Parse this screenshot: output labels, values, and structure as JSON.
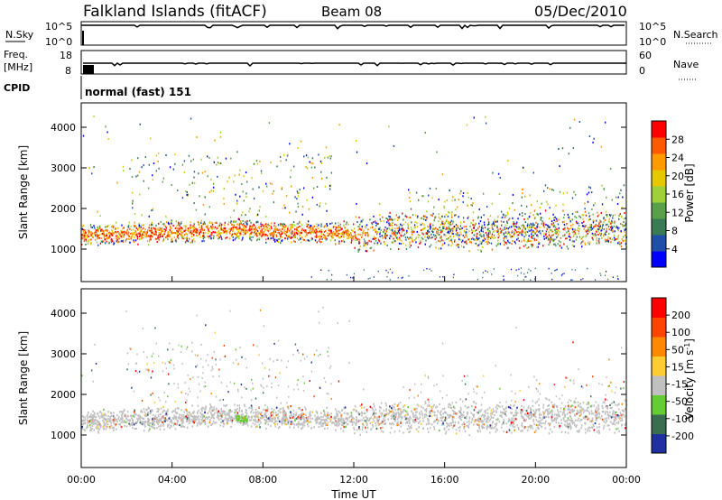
{
  "header": {
    "station": "Falkland Islands (fitACF)",
    "beam": "Beam 08",
    "date": "05/Dec/2010"
  },
  "aux_panels": {
    "nsky_label": "N.Sky",
    "nsky_ticks": [
      "10^5",
      "10^0"
    ],
    "nsearch_label": "N.Search",
    "nsearch_ticks": [
      "10^5",
      "10^0"
    ],
    "freq_label": "Freq.",
    "freq_unit": "[MHz]",
    "freq_ticks": [
      "18",
      "8"
    ],
    "nave_label": "Nave",
    "nave_ticks": [
      "60",
      "0"
    ],
    "cpid_label": "CPID",
    "cpid_value": "normal (fast) 151"
  },
  "chart_data": [
    {
      "type": "heatmap",
      "name": "power",
      "ylabel": "Slant Range [km]",
      "ylim": [
        200,
        4600
      ],
      "yticks": [
        "4000",
        "3000",
        "2000",
        "1000"
      ],
      "xlim_hours": [
        0,
        24
      ],
      "colorbar": {
        "label": "Power [dB]",
        "ticks": [
          "28",
          "24",
          "20",
          "16",
          "12",
          "8",
          "4"
        ],
        "colors": [
          "#0000ff",
          "#1f4fa8",
          "#3a7a55",
          "#5aa04a",
          "#9fcf3a",
          "#e6c800",
          "#ff9b00",
          "#ff5a00",
          "#ff0000"
        ]
      },
      "bands": [
        {
          "hours": [
            0,
            2
          ],
          "range": [
            1100,
            1650
          ],
          "level": "high"
        },
        {
          "hours": [
            2,
            6
          ],
          "range": [
            1200,
            1700
          ],
          "level": "high"
        },
        {
          "hours": [
            6,
            10
          ],
          "range": [
            1300,
            1700
          ],
          "level": "high"
        },
        {
          "hours": [
            10,
            13
          ],
          "range": [
            1250,
            1650
          ],
          "level": "high"
        },
        {
          "hours": [
            13,
            18
          ],
          "range": [
            1100,
            1800
          ],
          "level": "mid"
        },
        {
          "hours": [
            18,
            24
          ],
          "range": [
            1200,
            1800
          ],
          "level": "mid"
        }
      ]
    },
    {
      "type": "heatmap",
      "name": "velocity",
      "ylabel": "Slant Range [km]",
      "ylim": [
        200,
        4600
      ],
      "yticks": [
        "4000",
        "3000",
        "2000",
        "1000"
      ],
      "xlim_hours": [
        0,
        24
      ],
      "colorbar": {
        "label": "Velocity [m s^-1]",
        "ticks": [
          "200",
          "100",
          "50",
          "15",
          "-15",
          "-50",
          "-100",
          "-200"
        ],
        "colors": [
          "#2030a0",
          "#3a6e50",
          "#66cc33",
          "#c0c0c0",
          "#ffcc33",
          "#ff8800",
          "#ff4400",
          "#ff0000"
        ]
      }
    }
  ],
  "x_axis": {
    "label": "Time UT",
    "ticks": [
      "00:00",
      "04:00",
      "08:00",
      "12:00",
      "16:00",
      "20:00",
      "00:00"
    ]
  }
}
